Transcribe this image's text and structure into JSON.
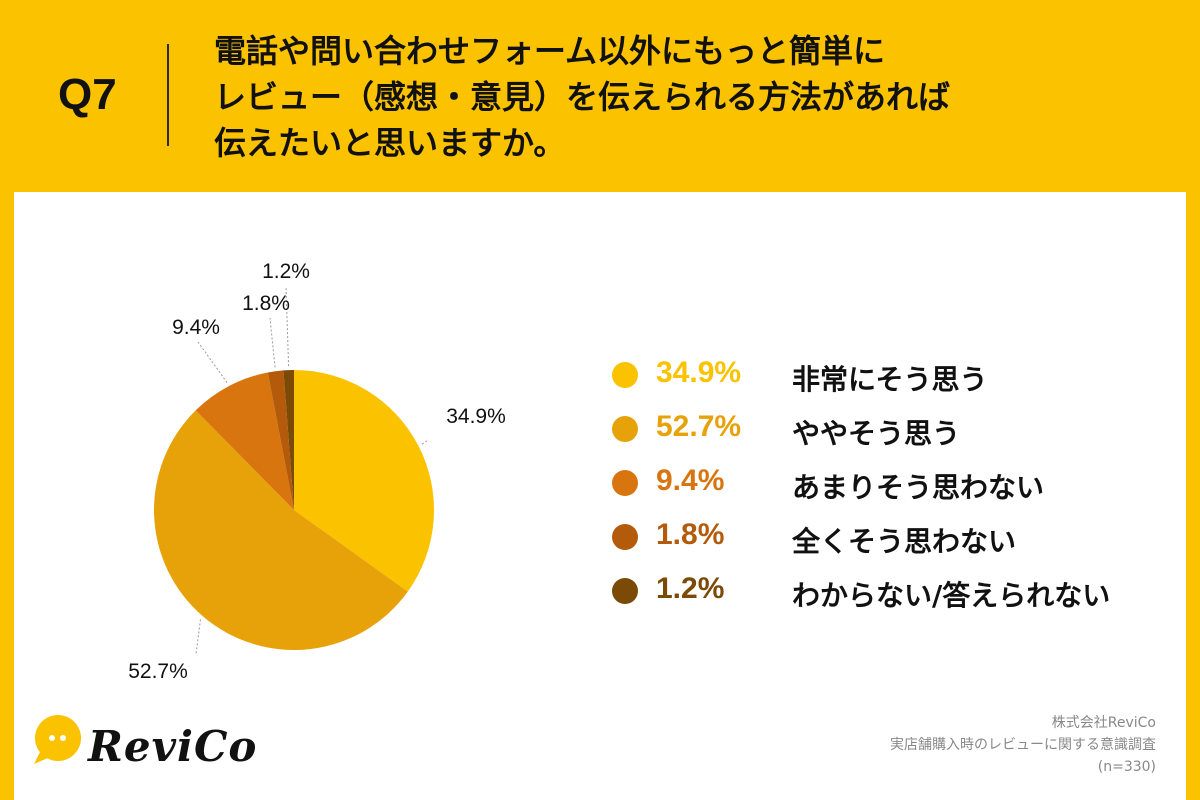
{
  "header": {
    "q_label": "Q7",
    "question_lines": [
      "電話や問い合わせフォーム以外にもっと簡単に",
      "レビュー（感想・意見）を伝えられる方法があれば",
      "伝えたいと思いますか。"
    ]
  },
  "colors": {
    "background": "#FBC200",
    "panel": "#ffffff"
  },
  "chart_data": {
    "type": "pie",
    "title": "電話や問い合わせフォーム以外にもっと簡単にレビュー（感想・意見）を伝えられる方法があれば伝えたいと思いますか。",
    "categories": [
      "非常にそう思う",
      "ややそう思う",
      "あまりそう思わない",
      "全くそう思わない",
      "わからない/答えられない"
    ],
    "values": [
      34.9,
      52.7,
      9.4,
      1.8,
      1.2
    ],
    "value_labels": [
      "34.9%",
      "52.7%",
      "9.4%",
      "1.8%",
      "1.2%"
    ],
    "colors": [
      "#FBC200",
      "#E8A209",
      "#D9750F",
      "#B35A0B",
      "#7A4A06"
    ],
    "start": "12 o'clock",
    "direction": "clockwise",
    "legend_position": "right"
  },
  "legend": [
    {
      "pct": "34.9%",
      "label": "非常にそう思う",
      "color": "#FBC200"
    },
    {
      "pct": "52.7%",
      "label": "ややそう思う",
      "color": "#E8A209"
    },
    {
      "pct": "9.4%",
      "label": "あまりそう思わない",
      "color": "#D9750F"
    },
    {
      "pct": "1.8%",
      "label": "全くそう思わない",
      "color": "#B35A0B"
    },
    {
      "pct": "1.2%",
      "label": "わからない/答えられない",
      "color": "#7A4A06"
    }
  ],
  "brand": {
    "logo_text": "ReviCo",
    "logo_icon": "speech-bubble-icon",
    "logo_color": "#FBC200"
  },
  "source": {
    "company": "株式会社ReviCo",
    "survey": "実店舗購入時のレビューに関する意識調査",
    "sample": "(n=330)"
  }
}
